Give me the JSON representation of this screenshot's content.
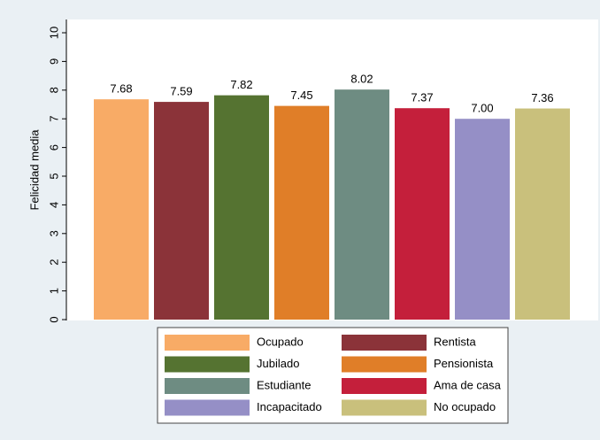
{
  "chart_data": {
    "type": "bar",
    "ylabel": "Felicidad media",
    "ylim": [
      0,
      10
    ],
    "yticks": [
      0,
      1,
      2,
      3,
      4,
      5,
      6,
      7,
      8,
      9,
      10
    ],
    "grid": false,
    "legend": "bottom",
    "series": [
      {
        "name": "Ocupado",
        "color": "#f8ab66",
        "values": [
          7.68
        ]
      },
      {
        "name": "Rentista",
        "color": "#8b3339",
        "values": [
          7.59
        ]
      },
      {
        "name": "Jubilado",
        "color": "#557331",
        "values": [
          7.82
        ]
      },
      {
        "name": "Pensionista",
        "color": "#e07e28",
        "values": [
          7.45
        ]
      },
      {
        "name": "Estudiante",
        "color": "#6e8c82",
        "values": [
          8.02
        ]
      },
      {
        "name": "Ama de casa",
        "color": "#c41f3b",
        "values": [
          7.37
        ]
      },
      {
        "name": "Incapacitado",
        "color": "#958fc6",
        "values": [
          7.0
        ],
        "value_labels": [
          "7.00"
        ]
      },
      {
        "name": "No ocupado",
        "color": "#c9c07c",
        "values": [
          7.36
        ]
      }
    ]
  }
}
